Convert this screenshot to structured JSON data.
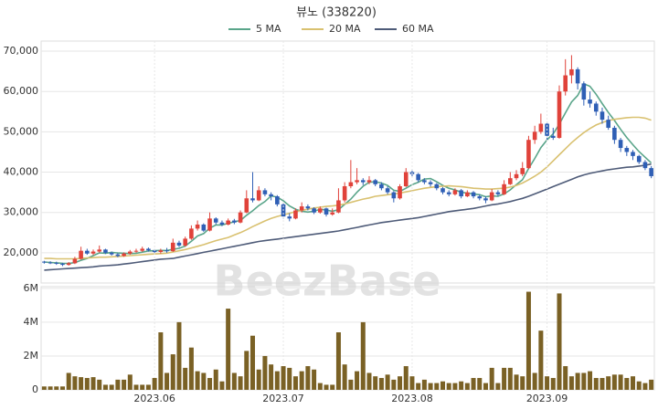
{
  "chart_data": [
    {
      "type": "candlestick",
      "title": "뷰노 (338220)",
      "watermark": "BeezBase",
      "up_color": "#e0423a",
      "down_color": "#2f5fb5",
      "grid": true,
      "ylim": [
        12500,
        72500
      ],
      "yticks": [
        {
          "value": 20000,
          "label": "20,000"
        },
        {
          "value": 30000,
          "label": "30,000"
        },
        {
          "value": 40000,
          "label": "40,000"
        },
        {
          "value": 50000,
          "label": "50,000"
        },
        {
          "value": 60000,
          "label": "60,000"
        },
        {
          "value": 70000,
          "label": "70,000"
        }
      ],
      "open": [
        17800,
        17600,
        17500,
        17300,
        17000,
        17400,
        18500,
        20500,
        19800,
        20300,
        20800,
        20000,
        19600,
        19200,
        19800,
        20300,
        20500,
        21000,
        20600,
        20200,
        20600,
        20400,
        22500,
        21800,
        23500,
        26000,
        27000,
        25500,
        28500,
        27500,
        27000,
        28000,
        27500,
        30000,
        33500,
        33000,
        35500,
        34500,
        34000,
        32000,
        29000,
        28500,
        30500,
        31500,
        31000,
        30000,
        31000,
        29500,
        30000,
        33000,
        36500,
        37500,
        38000,
        37500,
        38000,
        37000,
        36000,
        35000,
        33500,
        36500,
        40000,
        39500,
        38000,
        37500,
        37000,
        36000,
        35000,
        34500,
        35500,
        34000,
        35000,
        34000,
        33500,
        33000,
        35000,
        34500,
        37000,
        38500,
        39500,
        41000,
        48000,
        50000,
        52000,
        49000,
        48500,
        60000,
        64000,
        65500,
        62000,
        58000,
        57000,
        55000,
        53000,
        51000,
        48000,
        46000,
        45000,
        44000,
        42500,
        41000
      ],
      "high": [
        18000,
        17900,
        17800,
        17500,
        17700,
        19000,
        21500,
        21000,
        20800,
        21800,
        21000,
        20300,
        19900,
        20100,
        20700,
        21000,
        21500,
        21300,
        20900,
        21000,
        21200,
        23500,
        23000,
        24000,
        26800,
        28000,
        27300,
        30000,
        28800,
        28000,
        28500,
        28400,
        30500,
        35500,
        40000,
        36500,
        36000,
        35000,
        34300,
        32300,
        29800,
        31000,
        32500,
        32000,
        31300,
        31500,
        31200,
        31000,
        36000,
        37500,
        43000,
        41000,
        38500,
        39000,
        38300,
        37500,
        36500,
        35300,
        37000,
        41000,
        40800,
        39800,
        38500,
        38000,
        37300,
        36300,
        35500,
        36000,
        35800,
        35500,
        35300,
        34500,
        34000,
        35800,
        35500,
        38000,
        40000,
        40500,
        42500,
        49000,
        51500,
        54500,
        52500,
        51000,
        61500,
        68000,
        69000,
        66000,
        62500,
        60000,
        57500,
        56000,
        54000,
        51500,
        48500,
        46500,
        45500,
        44300,
        43000,
        41500
      ],
      "low": [
        17300,
        17200,
        17000,
        16700,
        16800,
        17200,
        18300,
        19500,
        19400,
        20000,
        19700,
        19300,
        18900,
        19000,
        19500,
        20000,
        20200,
        20300,
        19900,
        19800,
        20000,
        20200,
        21400,
        21500,
        23200,
        25500,
        25200,
        25300,
        27000,
        26600,
        26800,
        27100,
        27300,
        29800,
        32500,
        32800,
        34000,
        33000,
        31500,
        28500,
        27800,
        28300,
        30000,
        30500,
        29600,
        29700,
        29000,
        29200,
        29800,
        32500,
        36000,
        37000,
        36800,
        37000,
        36500,
        35500,
        34500,
        32500,
        33200,
        36300,
        38800,
        37500,
        37000,
        36400,
        35500,
        34500,
        34000,
        34200,
        33500,
        33800,
        33500,
        33000,
        32300,
        32800,
        34000,
        34300,
        36800,
        38000,
        39000,
        40800,
        47000,
        49500,
        48000,
        48000,
        48300,
        59000,
        62000,
        60500,
        56500,
        56000,
        54000,
        52000,
        50500,
        47000,
        45000,
        44000,
        43000,
        42000,
        40500,
        38500
      ],
      "close": [
        17600,
        17500,
        17300,
        17000,
        17400,
        18500,
        20500,
        19800,
        20300,
        20800,
        20000,
        19600,
        19200,
        19800,
        20300,
        20500,
        21000,
        20600,
        20200,
        20600,
        20400,
        22500,
        21800,
        23500,
        26000,
        27000,
        25500,
        28500,
        27500,
        27000,
        28000,
        27500,
        30000,
        33500,
        33000,
        35500,
        34500,
        34000,
        32000,
        29000,
        28500,
        30500,
        31500,
        31000,
        30000,
        31000,
        29500,
        30000,
        33000,
        36500,
        37500,
        38000,
        37500,
        38000,
        37000,
        36000,
        35000,
        33500,
        36500,
        40000,
        39500,
        38000,
        37500,
        37000,
        36000,
        35000,
        34500,
        35500,
        34000,
        35000,
        34000,
        33500,
        33000,
        35000,
        34500,
        37000,
        38500,
        39500,
        41000,
        48000,
        50000,
        52000,
        49000,
        48500,
        60000,
        64000,
        65500,
        62000,
        58000,
        57000,
        55000,
        53000,
        51000,
        48000,
        46000,
        45000,
        44000,
        42500,
        41000,
        39000
      ],
      "series": [
        {
          "name": "5 MA",
          "color": "#5aa58a",
          "values": [
            17700,
            17600,
            17500,
            17400,
            17360,
            17540,
            18140,
            18600,
            19300,
            19980,
            19880,
            20100,
            19960,
            19880,
            19780,
            19880,
            20160,
            20440,
            20520,
            20580,
            20560,
            20860,
            21100,
            21680,
            22840,
            24160,
            24760,
            26100,
            26900,
            26900,
            27300,
            27700,
            28000,
            29300,
            30400,
            31700,
            32700,
            34100,
            33800,
            32900,
            31600,
            30800,
            30300,
            30100,
            30300,
            30800,
            30600,
            30300,
            30700,
            32000,
            33300,
            35000,
            36500,
            37500,
            37600,
            37300,
            36700,
            35500,
            35200,
            36000,
            36900,
            37500,
            38300,
            38400,
            37600,
            36700,
            36000,
            35600,
            35000,
            34800,
            34600,
            34400,
            33900,
            34100,
            34000,
            34600,
            35600,
            36900,
            38100,
            40900,
            43400,
            46100,
            48000,
            49500,
            51900,
            54700,
            57400,
            59000,
            61900,
            61300,
            59300,
            57000,
            54800,
            52800,
            50600,
            48600,
            46800,
            45100,
            43700,
            42300
          ]
        },
        {
          "name": "20 MA",
          "color": "#d9c170",
          "values": [
            18600,
            18600,
            18500,
            18500,
            18500,
            18500,
            18600,
            18700,
            18800,
            18900,
            18900,
            19000,
            19100,
            19200,
            19300,
            19400,
            19500,
            19600,
            19700,
            19800,
            19900,
            20200,
            20500,
            20800,
            21200,
            21600,
            22000,
            22500,
            23000,
            23400,
            23800,
            24400,
            25000,
            25700,
            26500,
            27200,
            27900,
            28500,
            29000,
            29400,
            29800,
            30200,
            30500,
            30800,
            31100,
            31300,
            31500,
            31600,
            31800,
            32100,
            32500,
            32900,
            33300,
            33600,
            34000,
            34200,
            34400,
            34600,
            34800,
            35100,
            35400,
            35700,
            36000,
            36200,
            36400,
            36500,
            36600,
            36500,
            36400,
            36200,
            36000,
            35900,
            35800,
            35800,
            35900,
            36000,
            36300,
            36700,
            37300,
            38100,
            39000,
            40000,
            41300,
            42800,
            44300,
            45800,
            47300,
            48600,
            49800,
            50800,
            51700,
            52300,
            52800,
            53100,
            53300,
            53500,
            53600,
            53600,
            53400,
            52900
          ]
        },
        {
          "name": "60 MA",
          "color": "#4e5b78",
          "values": [
            15700,
            15800,
            15900,
            16000,
            16100,
            16200,
            16300,
            16400,
            16500,
            16700,
            16800,
            16900,
            17000,
            17200,
            17400,
            17600,
            17800,
            18000,
            18200,
            18400,
            18500,
            18600,
            18900,
            19200,
            19500,
            19800,
            20100,
            20400,
            20700,
            21000,
            21300,
            21600,
            21900,
            22200,
            22500,
            22800,
            23000,
            23200,
            23400,
            23600,
            23800,
            24000,
            24200,
            24400,
            24600,
            24800,
            25000,
            25200,
            25400,
            25700,
            26000,
            26300,
            26600,
            26900,
            27200,
            27500,
            27700,
            27900,
            28100,
            28300,
            28500,
            28700,
            29000,
            29300,
            29600,
            29900,
            30200,
            30400,
            30600,
            30800,
            31000,
            31300,
            31600,
            31900,
            32100,
            32400,
            32700,
            33100,
            33500,
            34000,
            34600,
            35200,
            35800,
            36400,
            37000,
            37600,
            38200,
            38800,
            39300,
            39700,
            40000,
            40300,
            40600,
            40800,
            41000,
            41200,
            41300,
            41500,
            41700,
            42000
          ]
        }
      ]
    },
    {
      "type": "bar",
      "color": "#7a6125",
      "grid": true,
      "ylim": [
        0,
        6100000
      ],
      "yticks": [
        0,
        {
          "value": 2000000,
          "label": "2M"
        },
        {
          "value": 4000000,
          "label": "4M"
        },
        {
          "value": 6000000,
          "label": "6M"
        }
      ],
      "categories": [
        null,
        null,
        null,
        null,
        null,
        null,
        null,
        null,
        null,
        null,
        null,
        null,
        null,
        null,
        null,
        null,
        null,
        null,
        "2023.06",
        null,
        null,
        null,
        null,
        null,
        null,
        null,
        null,
        null,
        null,
        null,
        null,
        null,
        null,
        null,
        null,
        null,
        null,
        null,
        null,
        "2023.07",
        null,
        null,
        null,
        null,
        null,
        null,
        null,
        null,
        null,
        null,
        null,
        null,
        null,
        null,
        null,
        null,
        null,
        null,
        null,
        null,
        "2023.08",
        null,
        null,
        null,
        null,
        null,
        null,
        null,
        null,
        null,
        null,
        null,
        null,
        null,
        null,
        null,
        null,
        null,
        null,
        null,
        null,
        null,
        "2023.09",
        null,
        null,
        null,
        null,
        null,
        null,
        null,
        null,
        null,
        null,
        null,
        null,
        null,
        null,
        null,
        null,
        null
      ],
      "values": [
        200000,
        200000,
        200000,
        200000,
        1000000,
        800000,
        750000,
        700000,
        750000,
        600000,
        300000,
        300000,
        600000,
        600000,
        900000,
        300000,
        300000,
        300000,
        700000,
        3400000,
        1000000,
        2100000,
        4000000,
        1300000,
        2500000,
        1100000,
        1000000,
        700000,
        1200000,
        500000,
        4800000,
        1000000,
        800000,
        2300000,
        3200000,
        1200000,
        2000000,
        1500000,
        1100000,
        1400000,
        1300000,
        800000,
        1100000,
        1400000,
        1200000,
        400000,
        300000,
        300000,
        3400000,
        1500000,
        600000,
        1100000,
        4000000,
        1000000,
        800000,
        700000,
        900000,
        600000,
        800000,
        1400000,
        800000,
        400000,
        600000,
        400000,
        400000,
        500000,
        400000,
        400000,
        500000,
        400000,
        700000,
        700000,
        400000,
        1300000,
        400000,
        1300000,
        1300000,
        900000,
        800000,
        5800000,
        1000000,
        3500000,
        800000,
        700000,
        5700000,
        1400000,
        800000,
        1000000,
        1000000,
        1100000,
        700000,
        700000,
        800000,
        900000,
        900000,
        700000,
        800000,
        500000,
        400000,
        600000
      ]
    }
  ]
}
